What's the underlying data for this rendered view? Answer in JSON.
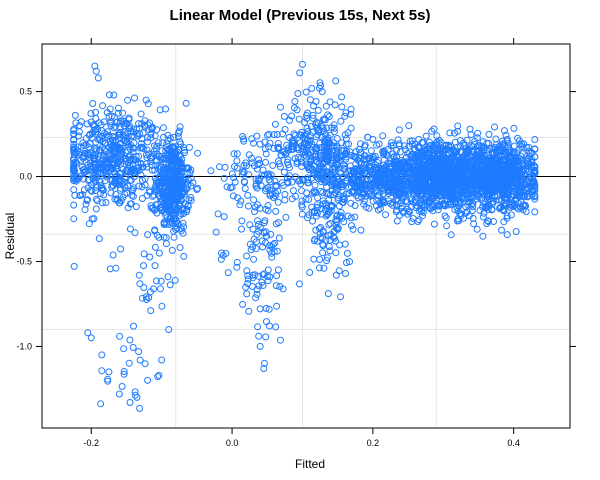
{
  "chart_data": {
    "type": "scatter",
    "title": "Linear Model (Previous 15s, Next 5s)",
    "xlabel": "Fitted",
    "ylabel": "Residual",
    "xlim": [
      -0.27,
      0.48
    ],
    "ylim": [
      -1.48,
      0.78
    ],
    "xticks": [
      -0.2,
      0.0,
      0.2,
      0.4
    ],
    "xtick_labels": [
      "-0.2",
      "0.0",
      "0.2",
      "0.4"
    ],
    "yticks": [
      0.5,
      0.0,
      -0.5,
      -1.0
    ],
    "ytick_labels": [
      "0.5",
      "0.0",
      "-0.5",
      "-1.0"
    ],
    "vertical_reference_lines_x": [
      -0.08,
      0.1,
      0.29
    ],
    "horizontal_reference_lines_y": [
      0.23,
      -0.34,
      -0.9
    ],
    "zero_line_y": 0,
    "grid": true,
    "marker": "open-circle",
    "point_color": "#1f7bff",
    "clusters": [
      {
        "xc": -0.17,
        "xs": 0.035,
        "yc": 0.1,
        "ys": 0.15,
        "n": 500
      },
      {
        "xc": -0.085,
        "xs": 0.012,
        "yc": -0.05,
        "ys": 0.14,
        "n": 420
      },
      {
        "xc": -0.12,
        "xs": 0.03,
        "yc": -0.55,
        "ys": 0.14,
        "n": 30
      },
      {
        "xc": -0.15,
        "xs": 0.02,
        "yc": -1.15,
        "ys": 0.12,
        "n": 20
      },
      {
        "xc": 0.04,
        "xs": 0.02,
        "yc": -0.4,
        "ys": 0.3,
        "n": 120
      },
      {
        "xc": 0.05,
        "xs": 0.03,
        "yc": 0.05,
        "ys": 0.12,
        "n": 90
      },
      {
        "xc": 0.12,
        "xs": 0.025,
        "yc": 0.15,
        "ys": 0.16,
        "n": 300
      },
      {
        "xc": 0.14,
        "xs": 0.015,
        "yc": -0.3,
        "ys": 0.18,
        "n": 100
      },
      {
        "xc": 0.19,
        "xs": 0.03,
        "yc": 0.0,
        "ys": 0.08,
        "n": 250
      },
      {
        "xc": 0.3,
        "xs": 0.055,
        "yc": 0.0,
        "ys": 0.1,
        "n": 1500
      },
      {
        "xc": 0.39,
        "xs": 0.02,
        "yc": 0.0,
        "ys": 0.1,
        "n": 500
      }
    ],
    "outliers": [
      [
        -0.195,
        0.65
      ],
      [
        -0.193,
        0.62
      ],
      [
        -0.19,
        0.58
      ],
      [
        -0.198,
        0.43
      ],
      [
        -0.168,
        0.48
      ],
      [
        0.1,
        0.66
      ],
      [
        0.096,
        0.61
      ],
      [
        0.128,
        0.5
      ],
      [
        -0.205,
        -0.92
      ],
      [
        -0.2,
        -0.95
      ],
      [
        -0.185,
        -1.05
      ],
      [
        -0.175,
        -1.15
      ],
      [
        -0.16,
        -1.28
      ],
      [
        -0.145,
        -1.33
      ],
      [
        -0.135,
        -1.3
      ],
      [
        -0.12,
        -1.2
      ],
      [
        -0.1,
        -1.08
      ],
      [
        -0.09,
        -0.9
      ],
      [
        -0.14,
        -0.88
      ],
      [
        0.045,
        -1.13
      ],
      [
        0.046,
        -1.1
      ],
      [
        0.04,
        -1.0
      ],
      [
        -0.225,
        0.08
      ],
      [
        -0.222,
        -0.02
      ],
      [
        0.425,
        -0.06
      ],
      [
        0.42,
        -0.12
      ],
      [
        0.415,
        0.06
      ],
      [
        -0.02,
        -0.22
      ],
      [
        -0.015,
        -0.45
      ]
    ]
  }
}
